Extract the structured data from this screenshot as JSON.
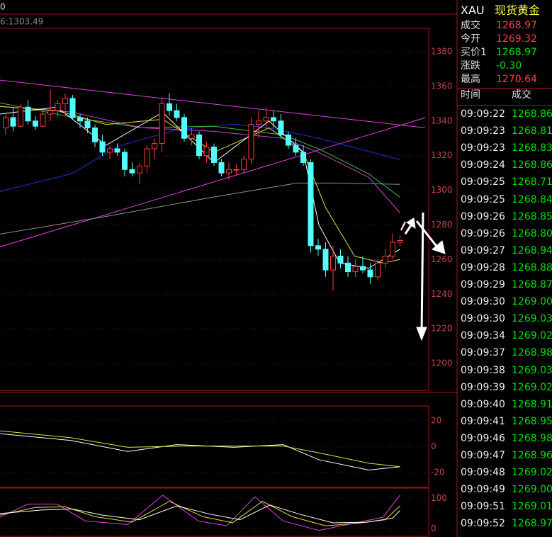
{
  "chart_data": {
    "type": "candlestick",
    "label_top": "0",
    "label_ma": "6:1303.49",
    "open": [
      1336,
      1342,
      1337,
      1348,
      1340,
      1337,
      1344,
      1346,
      1350,
      1353,
      1342,
      1340,
      1336,
      1328,
      1322,
      1324,
      1322,
      1312,
      1310,
      1314,
      1324,
      1327,
      1350,
      1346,
      1342,
      1330,
      1332,
      1320,
      1325,
      1316,
      1310,
      1312,
      1312,
      1318,
      1338,
      1340,
      1342,
      1340,
      1332,
      1326,
      1322,
      1316,
      1268,
      1266,
      1254,
      1262,
      1258,
      1253,
      1256,
      1254,
      1250,
      1258,
      1262,
      1270
    ],
    "high": [
      1345,
      1348,
      1350,
      1352,
      1343,
      1346,
      1358,
      1352,
      1356,
      1355,
      1344,
      1342,
      1338,
      1332,
      1326,
      1327,
      1324,
      1316,
      1316,
      1326,
      1330,
      1354,
      1356,
      1350,
      1344,
      1336,
      1334,
      1328,
      1327,
      1318,
      1316,
      1315,
      1320,
      1342,
      1346,
      1348,
      1346,
      1344,
      1334,
      1330,
      1326,
      1318,
      1272,
      1270,
      1268,
      1266,
      1262,
      1260,
      1262,
      1258,
      1260,
      1266,
      1275,
      1274
    ],
    "low": [
      1332,
      1334,
      1336,
      1338,
      1335,
      1336,
      1340,
      1342,
      1343,
      1341,
      1336,
      1333,
      1325,
      1320,
      1318,
      1320,
      1308,
      1308,
      1304,
      1310,
      1318,
      1322,
      1343,
      1340,
      1328,
      1326,
      1318,
      1316,
      1314,
      1308,
      1306,
      1309,
      1310,
      1315,
      1330,
      1335,
      1336,
      1330,
      1324,
      1320,
      1314,
      1264,
      1262,
      1250,
      1242,
      1255,
      1250,
      1250,
      1252,
      1246,
      1248,
      1255,
      1260,
      1268
    ],
    "close": [
      1342,
      1337,
      1348,
      1340,
      1337,
      1344,
      1346,
      1350,
      1353,
      1342,
      1340,
      1336,
      1328,
      1322,
      1324,
      1322,
      1312,
      1310,
      1314,
      1324,
      1327,
      1350,
      1346,
      1342,
      1330,
      1332,
      1320,
      1325,
      1316,
      1310,
      1312,
      1312,
      1318,
      1338,
      1340,
      1342,
      1340,
      1332,
      1326,
      1322,
      1316,
      1268,
      1266,
      1254,
      1262,
      1258,
      1253,
      1256,
      1254,
      1250,
      1258,
      1262,
      1270,
      1271
    ],
    "ylim": [
      1184.5,
      1393.5
    ],
    "yticks": [
      1200,
      1220,
      1240,
      1260,
      1280,
      1300,
      1320,
      1340,
      1360,
      1380
    ],
    "grid": true,
    "lines": [
      {
        "color": "#e040e0",
        "x": [
          -0.8,
          56.4
        ],
        "values": [
          1363.6,
          1336.1
        ]
      },
      {
        "color": "#e040e0",
        "x": [
          -0.8,
          56.4
        ],
        "values": [
          1267.3,
          1341.9
        ]
      },
      {
        "color": "#2030e0",
        "x": [
          -0.8,
          8.8,
          15.4,
          23,
          30.7,
          35.4,
          42.1,
          53
        ],
        "values": [
          1299.3,
          1309.5,
          1325.9,
          1334.9,
          1338.2,
          1336.1,
          1330,
          1317.7
        ]
      },
      {
        "color": "#909090",
        "x": [
          -0.8,
          13.5,
          27.8,
          39.2,
          44.9,
          53
        ],
        "values": [
          1274.7,
          1284.9,
          1296,
          1304.2,
          1304.2,
          1303.4
        ]
      },
      {
        "color": "#40c040",
        "x": [
          -0.8,
          8.8,
          18.3,
          27.8,
          37.3,
          42.1,
          48.8,
          53
        ],
        "values": [
          1350.5,
          1342.3,
          1336.1,
          1337,
          1332,
          1323.9,
          1309.5,
          1296
        ]
      },
      {
        "color": "#d040d0",
        "x": [
          -0.8,
          8.8,
          18.3,
          27.8,
          37.3,
          42.1,
          48.8,
          53
        ],
        "values": [
          1348.4,
          1345.2,
          1336.1,
          1334.1,
          1330,
          1321.8,
          1307.5,
          1287
        ]
      },
      {
        "color": "#e0e040",
        "x": [
          -0.8,
          6.9,
          13.5,
          21.1,
          28,
          35.4,
          40,
          43,
          46.9,
          50.7,
          53
        ],
        "values": [
          1348.4,
          1346,
          1338,
          1341,
          1322,
          1336,
          1322,
          1290,
          1262,
          1258,
          1260
        ]
      },
      {
        "color": "#ffffff",
        "x": [
          -0.8,
          6.9,
          13.5,
          21.1,
          28,
          35.4,
          40,
          42.1,
          44.9,
          48.8,
          53
        ],
        "values": [
          1344,
          1348,
          1326,
          1345,
          1316,
          1340,
          1322,
          1280,
          1258,
          1255,
          1266
        ]
      }
    ],
    "macd": {
      "ylim": [
        -31.5,
        31.5
      ],
      "yticks": [
        -20,
        0,
        20
      ],
      "lines": [
        {
          "color": "#ffffff",
          "x": [
            -0.8,
            8.8,
            16.4,
            23,
            30.7,
            37.3,
            42.1,
            48.8,
            53
          ],
          "values": [
            10.1,
            4.8,
            -3.7,
            1.6,
            -0.5,
            1.6,
            -10.1,
            -18.1,
            -15.5
          ]
        },
        {
          "color": "#e0e040",
          "x": [
            -0.8,
            8.8,
            16.4,
            24,
            37.3,
            42.1,
            48.8,
            53
          ],
          "values": [
            12.3,
            6.9,
            -0.5,
            0.5,
            0.5,
            -4.8,
            -12.8,
            -15.5
          ]
        }
      ]
    },
    "kdj": {
      "ylim": [
        -24,
        133
      ],
      "yticks": [
        0,
        100
      ],
      "lines": [
        {
          "color": "#e040e0",
          "x": [
            -0.8,
            3,
            6.9,
            10.7,
            16.4,
            21.1,
            25.9,
            29.7,
            33.5,
            37.3,
            42.1,
            46.9,
            50.7,
            53
          ],
          "values": [
            38,
            81,
            81,
            26,
            14,
            110,
            26,
            10,
            105,
            26,
            -5,
            19,
            38,
            110
          ]
        },
        {
          "color": "#e0e040",
          "x": [
            -0.8,
            4,
            8,
            12,
            17,
            22,
            26.5,
            30.5,
            34.5,
            38.5,
            43,
            47.5,
            51,
            53
          ],
          "values": [
            45,
            70,
            72,
            40,
            22,
            90,
            40,
            20,
            90,
            40,
            10,
            19,
            30,
            75
          ]
        },
        {
          "color": "#ffffff",
          "x": [
            -0.8,
            5,
            9,
            13,
            18,
            23,
            27.5,
            31.5,
            35.5,
            39.5,
            44,
            48.5,
            52,
            53
          ],
          "values": [
            50,
            62,
            65,
            45,
            30,
            75,
            48,
            30,
            78,
            48,
            20,
            22,
            35,
            60
          ]
        }
      ]
    }
  },
  "quote": {
    "symbol": "XAU",
    "name": "现货黄金",
    "rows": [
      [
        "成交",
        "1268.97"
      ],
      [
        "今开",
        "1269.32"
      ],
      [
        "买价1",
        "1268.97"
      ],
      [
        "涨跌",
        "-0.30"
      ],
      [
        "最高",
        "1270.64"
      ]
    ]
  },
  "trades": {
    "header": [
      "时间",
      "成交"
    ],
    "rows": [
      [
        "09:09:22",
        "1268.86"
      ],
      [
        "09:09:23",
        "1268.81"
      ],
      [
        "09:09:23",
        "1268.83"
      ],
      [
        "09:09:24",
        "1268.86"
      ],
      [
        "09:09:25",
        "1268.71"
      ],
      [
        "09:09:25",
        "1268.84"
      ],
      [
        "09:09:26",
        "1268.85"
      ],
      [
        "09:09:26",
        "1268.80"
      ],
      [
        "09:09:27",
        "1268.94"
      ],
      [
        "09:09:28",
        "1268.88"
      ],
      [
        "09:09:29",
        "1268.87"
      ],
      [
        "09:09:30",
        "1269.00"
      ],
      [
        "09:09:30",
        "1269.03"
      ],
      [
        "09:09:34",
        "1269.02"
      ],
      [
        "09:09:37",
        "1268.98"
      ],
      [
        "09:09:38",
        "1269.03"
      ],
      [
        "09:09:39",
        "1269.02"
      ],
      [
        "09:09:40",
        "1268.91"
      ],
      [
        "09:09:41",
        "1268.95"
      ],
      [
        "09:09:46",
        "1268.98"
      ],
      [
        "09:09:47",
        "1268.96"
      ],
      [
        "09:09:48",
        "1269.02"
      ],
      [
        "09:09:49",
        "1269.00"
      ],
      [
        "09:09:51",
        "1269.01"
      ],
      [
        "09:09:52",
        "1268.97"
      ]
    ]
  }
}
